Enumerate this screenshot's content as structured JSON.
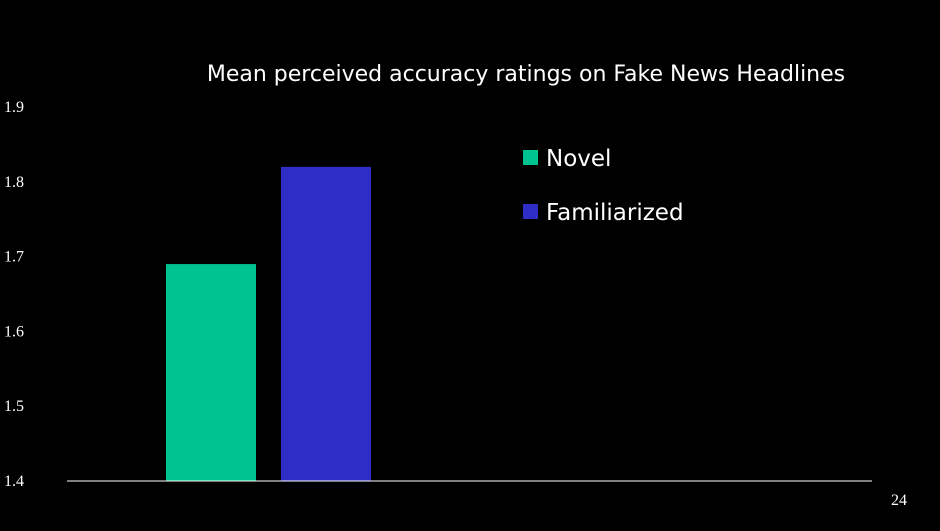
{
  "chart_data": {
    "type": "bar",
    "title": "Mean perceived accuracy ratings on Fake News Headlines",
    "xlabel": "",
    "ylabel": "",
    "ylim": [
      1.4,
      1.9
    ],
    "yticks": [
      "1.4",
      "1.5",
      "1.6",
      "1.7",
      "1.8",
      "1.9"
    ],
    "grid": false,
    "legend_position": "top-right",
    "series": [
      {
        "name": "Novel",
        "values": [
          1.69
        ],
        "color": "#00C48F"
      },
      {
        "name": "Familiarized",
        "values": [
          1.82
        ],
        "color": "#2E2EC6"
      }
    ]
  },
  "slide": {
    "page_number": "24",
    "background": "#000000",
    "axis_color": "#ffffff"
  }
}
